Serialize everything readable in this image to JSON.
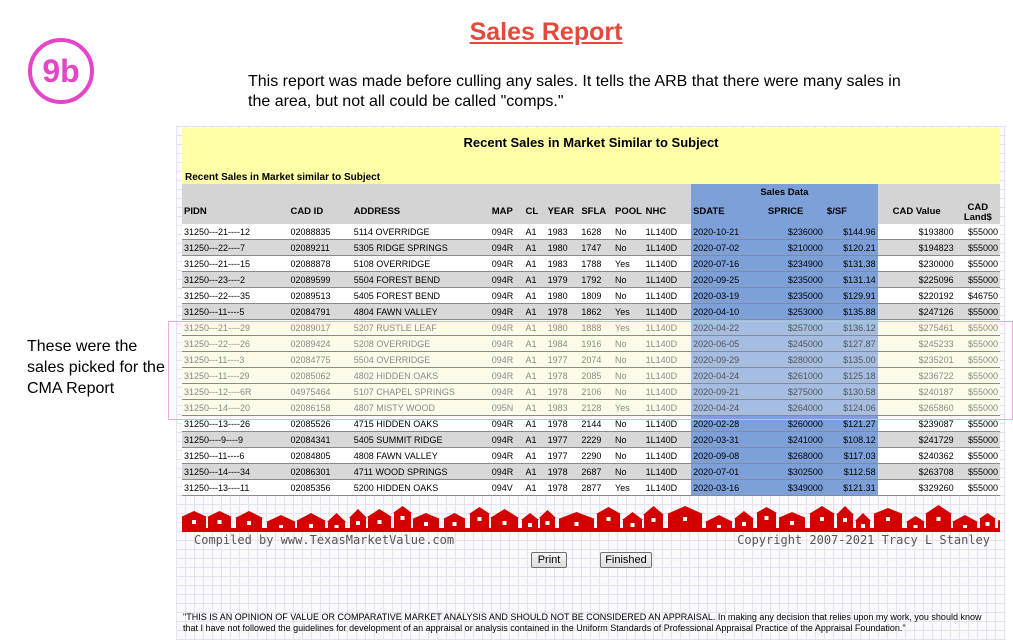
{
  "badge": "9b",
  "title": "Sales Report",
  "intro": "This report was made before culling any sales. It tells the ARB that there were many sales in the area, but not all could be called \"comps.\"",
  "side_note": "These were the sales picked for the CMA Report",
  "report": {
    "heading": "Recent Sales in Market Similar to Subject",
    "subheading": "Recent Sales in Market similar to Subject",
    "group_header": "Sales Data",
    "columns": [
      "PIDN",
      "CAD ID",
      "ADDRESS",
      "MAP",
      "CL",
      "YEAR",
      "SFLA",
      "POOL",
      "NHC",
      "SDATE",
      "SPRICE",
      "$/SF",
      "CAD Value",
      "CAD Land$"
    ],
    "rows": [
      {
        "pidn": "31250---21----12",
        "cad": "02088835",
        "address": "5114 OVERRIDGE",
        "map": "094R",
        "cl": "A1",
        "year": "1983",
        "sfla": "1628",
        "pool": "No",
        "nhc": "1L140D",
        "sdate": "2020-10-21",
        "sprice": "$236000",
        "psf": "$144.96",
        "cadval": "$193800",
        "land": "$55000",
        "picked": false
      },
      {
        "pidn": "31250---22----7",
        "cad": "02089211",
        "address": "5305 RIDGE SPRINGS",
        "map": "094R",
        "cl": "A1",
        "year": "1980",
        "sfla": "1747",
        "pool": "No",
        "nhc": "1L140D",
        "sdate": "2020-07-02",
        "sprice": "$210000",
        "psf": "$120.21",
        "cadval": "$194823",
        "land": "$55000",
        "picked": false
      },
      {
        "pidn": "31250---21----15",
        "cad": "02088878",
        "address": "5108 OVERRIDGE",
        "map": "094R",
        "cl": "A1",
        "year": "1983",
        "sfla": "1788",
        "pool": "Yes",
        "nhc": "1L140D",
        "sdate": "2020-07-16",
        "sprice": "$234900",
        "psf": "$131.38",
        "cadval": "$230000",
        "land": "$55000",
        "picked": false
      },
      {
        "pidn": "31250---23----2",
        "cad": "02089599",
        "address": "5504 FOREST BEND",
        "map": "094R",
        "cl": "A1",
        "year": "1979",
        "sfla": "1792",
        "pool": "No",
        "nhc": "1L140D",
        "sdate": "2020-09-25",
        "sprice": "$235000",
        "psf": "$131.14",
        "cadval": "$225096",
        "land": "$55000",
        "picked": false
      },
      {
        "pidn": "31250---22----35",
        "cad": "02089513",
        "address": "5405 FOREST BEND",
        "map": "094R",
        "cl": "A1",
        "year": "1980",
        "sfla": "1809",
        "pool": "No",
        "nhc": "1L140D",
        "sdate": "2020-03-19",
        "sprice": "$235000",
        "psf": "$129.91",
        "cadval": "$220192",
        "land": "$46750",
        "picked": false
      },
      {
        "pidn": "31250---11----5",
        "cad": "02084791",
        "address": "4804 FAWN VALLEY",
        "map": "094R",
        "cl": "A1",
        "year": "1978",
        "sfla": "1862",
        "pool": "Yes",
        "nhc": "1L140D",
        "sdate": "2020-04-10",
        "sprice": "$253000",
        "psf": "$135.88",
        "cadval": "$247126",
        "land": "$55000",
        "picked": false
      },
      {
        "pidn": "31250---21----29",
        "cad": "02089017",
        "address": "5207 RUSTLE LEAF",
        "map": "094R",
        "cl": "A1",
        "year": "1980",
        "sfla": "1888",
        "pool": "Yes",
        "nhc": "1L140D",
        "sdate": "2020-04-22",
        "sprice": "$257000",
        "psf": "$136.12",
        "cadval": "$275461",
        "land": "$55000",
        "picked": true
      },
      {
        "pidn": "31250---22----26",
        "cad": "02089424",
        "address": "5208 OVERRIDGE",
        "map": "094R",
        "cl": "A1",
        "year": "1984",
        "sfla": "1916",
        "pool": "No",
        "nhc": "1L140D",
        "sdate": "2020-06-05",
        "sprice": "$245000",
        "psf": "$127.87",
        "cadval": "$245233",
        "land": "$55000",
        "picked": true
      },
      {
        "pidn": "31250---11----3",
        "cad": "02084775",
        "address": "5504 OVERRIDGE",
        "map": "094R",
        "cl": "A1",
        "year": "1977",
        "sfla": "2074",
        "pool": "No",
        "nhc": "1L140D",
        "sdate": "2020-09-29",
        "sprice": "$280000",
        "psf": "$135.00",
        "cadval": "$235201",
        "land": "$55000",
        "picked": true
      },
      {
        "pidn": "31250---11----29",
        "cad": "02085062",
        "address": "4802 HIDDEN OAKS",
        "map": "094R",
        "cl": "A1",
        "year": "1978",
        "sfla": "2085",
        "pool": "No",
        "nhc": "1L140D",
        "sdate": "2020-04-24",
        "sprice": "$261000",
        "psf": "$125.18",
        "cadval": "$236722",
        "land": "$55000",
        "picked": true
      },
      {
        "pidn": "31250---12----6R",
        "cad": "04975464",
        "address": "5107 CHAPEL SPRINGS",
        "map": "094R",
        "cl": "A1",
        "year": "1978",
        "sfla": "2106",
        "pool": "No",
        "nhc": "1L140D",
        "sdate": "2020-09-21",
        "sprice": "$275000",
        "psf": "$130.58",
        "cadval": "$240187",
        "land": "$55000",
        "picked": true
      },
      {
        "pidn": "31250---14----20",
        "cad": "02086158",
        "address": "4807 MISTY WOOD",
        "map": "095N",
        "cl": "A1",
        "year": "1983",
        "sfla": "2128",
        "pool": "Yes",
        "nhc": "1L140D",
        "sdate": "2020-04-24",
        "sprice": "$264000",
        "psf": "$124.06",
        "cadval": "$265860",
        "land": "$55000",
        "picked": true
      },
      {
        "pidn": "31250---13----26",
        "cad": "02085526",
        "address": "4715 HIDDEN OAKS",
        "map": "094R",
        "cl": "A1",
        "year": "1978",
        "sfla": "2144",
        "pool": "No",
        "nhc": "1L140D",
        "sdate": "2020-02-28",
        "sprice": "$260000",
        "psf": "$121.27",
        "cadval": "$239087",
        "land": "$55000",
        "picked": false
      },
      {
        "pidn": "31250----9----9",
        "cad": "02084341",
        "address": "5405 SUMMIT RIDGE",
        "map": "094R",
        "cl": "A1",
        "year": "1977",
        "sfla": "2229",
        "pool": "No",
        "nhc": "1L140D",
        "sdate": "2020-03-31",
        "sprice": "$241000",
        "psf": "$108.12",
        "cadval": "$241729",
        "land": "$55000",
        "picked": false
      },
      {
        "pidn": "31250---11----6",
        "cad": "02084805",
        "address": "4808 FAWN VALLEY",
        "map": "094R",
        "cl": "A1",
        "year": "1977",
        "sfla": "2290",
        "pool": "No",
        "nhc": "1L140D",
        "sdate": "2020-09-08",
        "sprice": "$268000",
        "psf": "$117.03",
        "cadval": "$240362",
        "land": "$55000",
        "picked": false
      },
      {
        "pidn": "31250---14----34",
        "cad": "02086301",
        "address": "4711 WOOD SPRINGS",
        "map": "094R",
        "cl": "A1",
        "year": "1978",
        "sfla": "2687",
        "pool": "No",
        "nhc": "1L140D",
        "sdate": "2020-07-01",
        "sprice": "$302500",
        "psf": "$112.58",
        "cadval": "$263708",
        "land": "$55000",
        "picked": false
      },
      {
        "pidn": "31250---13----11",
        "cad": "02085356",
        "address": "5200 HIDDEN OAKS",
        "map": "094V",
        "cl": "A1",
        "year": "1978",
        "sfla": "2877",
        "pool": "Yes",
        "nhc": "1L140D",
        "sdate": "2020-03-16",
        "sprice": "$349000",
        "psf": "$121.31",
        "cadval": "$329260",
        "land": "$55000",
        "picked": false
      }
    ],
    "compiled_by": "Compiled by www.TexasMarketValue.com",
    "copyright": "Copyright 2007-2021 Tracy L Stanley"
  },
  "buttons": {
    "print": "Print",
    "finished": "Finished"
  },
  "disclaimer": "\"THIS IS AN OPINION OF VALUE OR COMPARATIVE MARKET ANALYSIS AND SHOULD NOT BE CONSIDERED AN APPRAISAL. In making any decision that relies upon my work, you should know that I have not followed the guidelines for development of an appraisal or analysis contained in the Uniform Standards of Professional Appraisal Practice of the Appraisal Foundation.\"",
  "colors": {
    "accent_pink": "#e545c8",
    "title_red": "#e34a3c",
    "sales_blue": "#7da0d8",
    "header_yellow": "#ffffa8",
    "banner_red": "#d40000"
  }
}
